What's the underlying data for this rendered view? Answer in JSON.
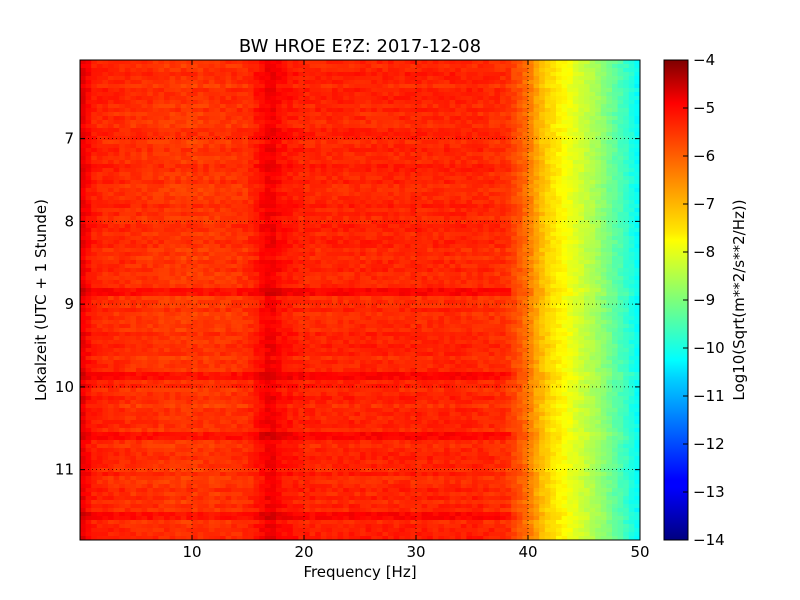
{
  "chart_data": {
    "type": "heatmap",
    "title": "BW HROE E?Z: 2017-12-08",
    "xlabel": "Frequency [Hz]",
    "ylabel": "Lokalzeit (UTC + 1 Stunde)",
    "xlim": [
      0,
      50
    ],
    "ylim": [
      11.85,
      6.05
    ],
    "y_inverted": true,
    "grid": true,
    "x_ticks": [
      10,
      20,
      30,
      40,
      50
    ],
    "y_ticks": [
      7,
      8,
      9,
      10,
      11
    ],
    "colormap": "jet",
    "colorbar": {
      "label": "Log10(Sqrt(m**2/s**2/Hz))",
      "range": [
        -14,
        -4
      ],
      "ticks": [
        -4,
        -5,
        -6,
        -7,
        -8,
        -9,
        -10,
        -11,
        -12,
        -13,
        -14
      ]
    },
    "frequency_profile": {
      "frequency_hz": [
        0,
        0.5,
        1,
        2,
        5,
        10,
        15,
        17,
        18,
        20,
        25,
        30,
        35,
        38,
        39,
        40,
        41,
        42,
        43,
        44,
        45,
        46,
        47,
        48,
        49,
        50
      ],
      "log10_amplitude": [
        -5.0,
        -5.2,
        -5.5,
        -5.6,
        -5.7,
        -5.8,
        -5.7,
        -5.1,
        -5.4,
        -5.6,
        -5.6,
        -5.6,
        -5.6,
        -5.7,
        -6.0,
        -6.4,
        -7.0,
        -7.4,
        -7.7,
        -8.0,
        -8.3,
        -8.6,
        -9.0,
        -9.4,
        -9.8,
        -10.3
      ]
    },
    "noisy_hours": [
      {
        "time": 9.87,
        "log10_amplitude": -5.0
      },
      {
        "time": 8.84,
        "log10_amplitude": -5.2
      },
      {
        "time": 10.6,
        "log10_amplitude": -5.3
      },
      {
        "time": 11.55,
        "log10_amplitude": -5.3
      }
    ]
  }
}
